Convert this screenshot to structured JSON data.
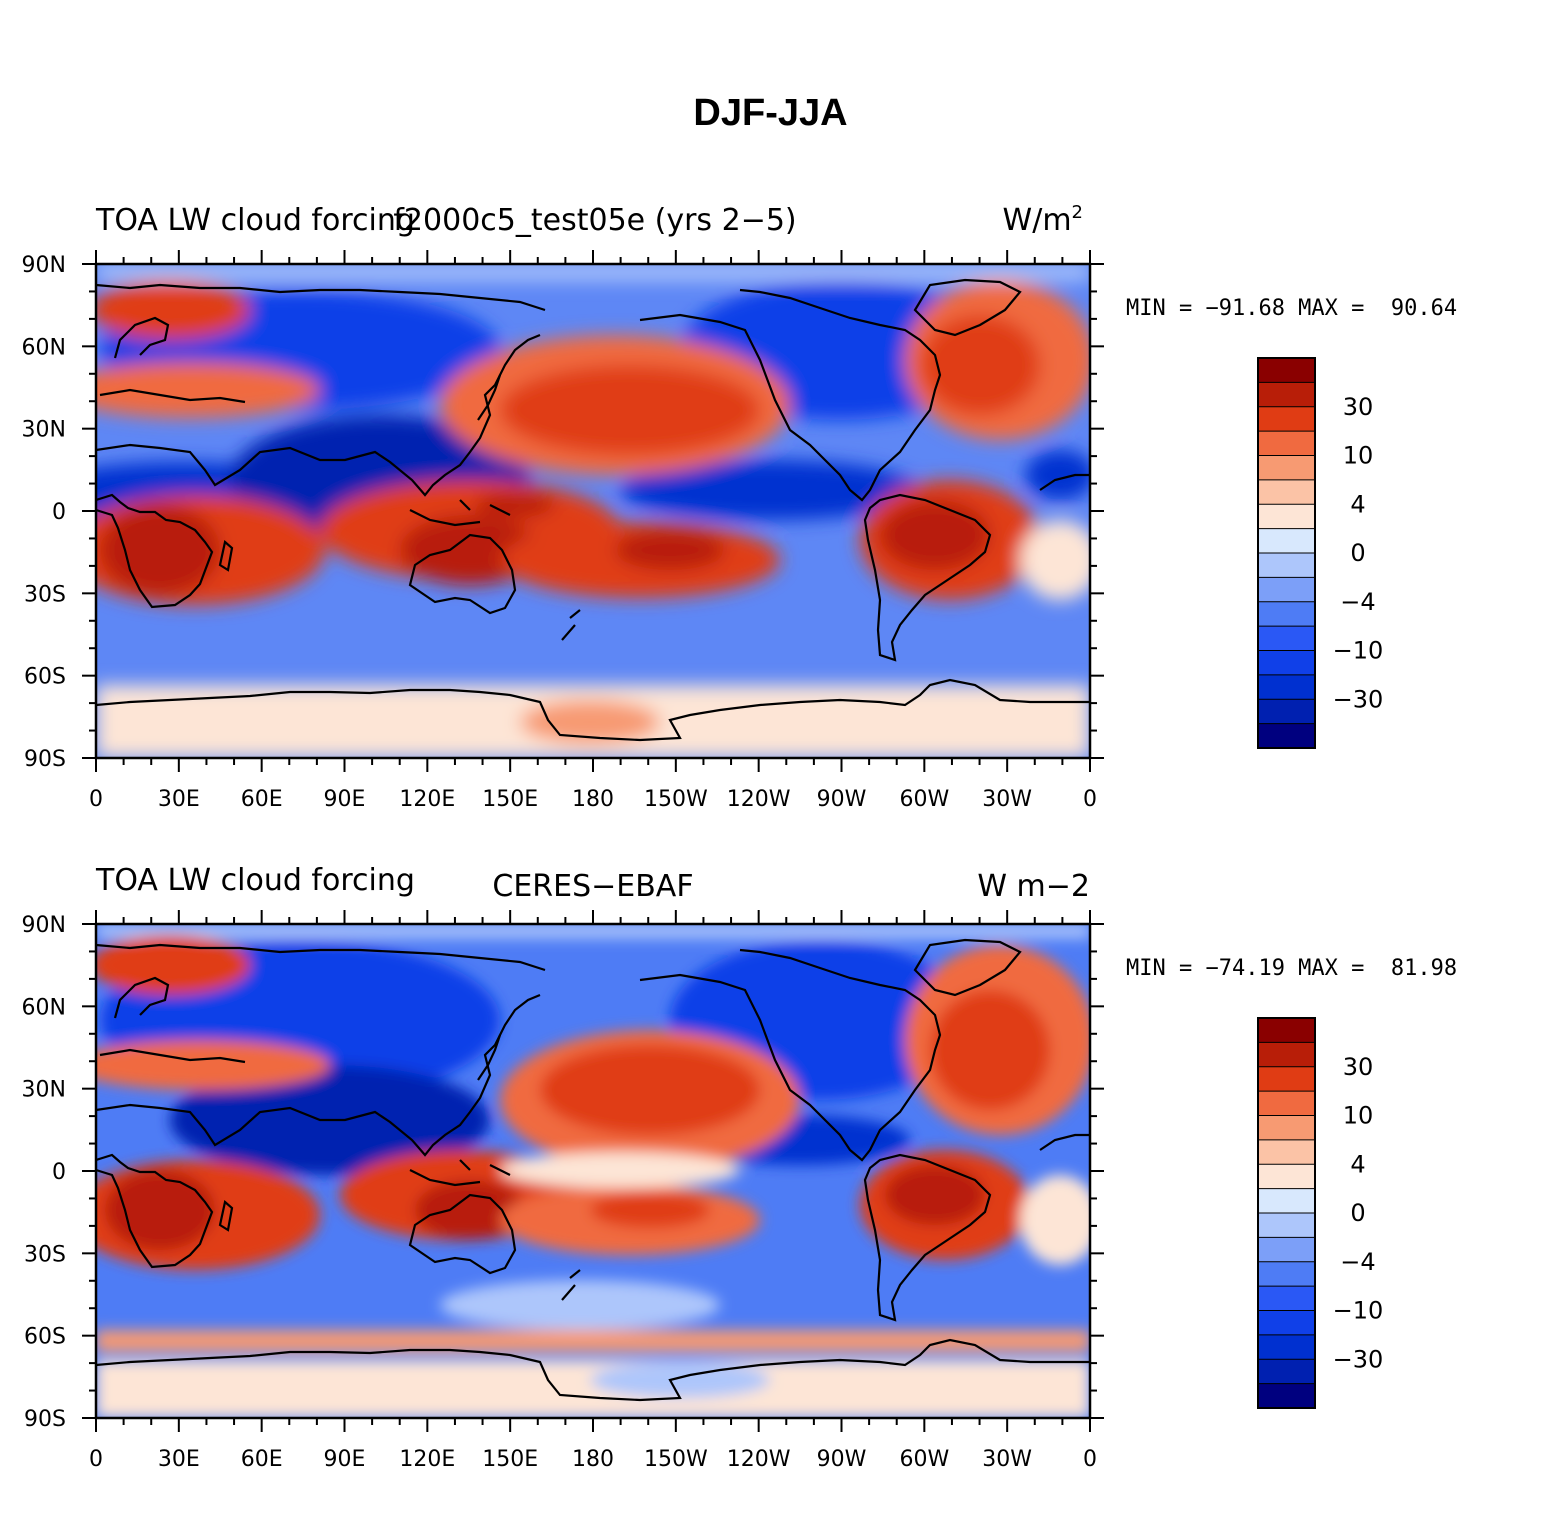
{
  "title": "DJF-JJA",
  "colorbar": {
    "colors": [
      "#00007f",
      "#0020b0",
      "#0030d0",
      "#1040e8",
      "#2a58f5",
      "#4e7cf5",
      "#7c9ff8",
      "#adc6fb",
      "#d8e8fd",
      "#fde5d6",
      "#fbc3a6",
      "#f79a72",
      "#f06a40",
      "#e03c14",
      "#b81e08",
      "#8a0000"
    ],
    "tick_labels": [
      "30",
      "10",
      "4",
      "0",
      "−4",
      "−10",
      "−30"
    ]
  },
  "axes": {
    "x_ticks": [
      "0",
      "30E",
      "60E",
      "90E",
      "120E",
      "150E",
      "180",
      "150W",
      "120W",
      "90W",
      "60W",
      "30W",
      "0"
    ],
    "y_ticks": [
      "90N",
      "60N",
      "30N",
      "0",
      "30S",
      "60S",
      "90S"
    ]
  },
  "panels": [
    {
      "left_title": "TOA LW cloud forcing",
      "center_title": "f2000c5_test05e (yrs 2−5)",
      "units": "W/m",
      "units_sup": "2",
      "stats": "MIN = −91.68 MAX =  90.64"
    },
    {
      "left_title": "TOA LW cloud forcing",
      "center_title": "CERES−EBAF",
      "units": "W m−2",
      "units_sup": "",
      "stats": "MIN = −74.19 MAX =  81.98"
    }
  ],
  "chart_data": [
    {
      "type": "heatmap",
      "title": "f2000c5_test05e (yrs 2−5)",
      "variable": "TOA LW cloud forcing",
      "season": "DJF-JJA",
      "units": "W/m2",
      "min": -91.68,
      "max": 90.64,
      "contour_levels": [
        -50,
        -40,
        -30,
        -20,
        -15,
        -10,
        -6,
        -4,
        -2,
        0,
        2,
        4,
        6,
        10,
        15,
        20,
        30,
        40,
        50
      ],
      "colorbar_labels": [
        30,
        10,
        4,
        0,
        -4,
        -10,
        -30
      ],
      "x_axis": {
        "label": "",
        "ticks": [
          "0",
          "30E",
          "60E",
          "90E",
          "120E",
          "150E",
          "180",
          "150W",
          "120W",
          "90W",
          "60W",
          "30W",
          "0"
        ],
        "range": [
          0,
          360
        ]
      },
      "y_axis": {
        "label": "",
        "ticks": [
          "90N",
          "60N",
          "30N",
          "0",
          "30S",
          "60S",
          "90S"
        ],
        "range": [
          90,
          -90
        ]
      },
      "map": "global cylindrical equidistant, centered on 180"
    },
    {
      "type": "heatmap",
      "title": "CERES−EBAF",
      "variable": "TOA LW cloud forcing",
      "season": "DJF-JJA",
      "units": "W m−2",
      "min": -74.19,
      "max": 81.98,
      "contour_levels": [
        -50,
        -40,
        -30,
        -20,
        -15,
        -10,
        -6,
        -4,
        -2,
        0,
        2,
        4,
        6,
        10,
        15,
        20,
        30,
        40,
        50
      ],
      "colorbar_labels": [
        30,
        10,
        4,
        0,
        -4,
        -10,
        -30
      ],
      "x_axis": {
        "label": "",
        "ticks": [
          "0",
          "30E",
          "60E",
          "90E",
          "120E",
          "150E",
          "180",
          "150W",
          "120W",
          "90W",
          "60W",
          "30W",
          "0"
        ],
        "range": [
          0,
          360
        ]
      },
      "y_axis": {
        "label": "",
        "ticks": [
          "90N",
          "60N",
          "30N",
          "0",
          "30S",
          "60S",
          "90S"
        ],
        "range": [
          90,
          -90
        ]
      },
      "map": "global cylindrical equidistant, centered on 180"
    }
  ]
}
